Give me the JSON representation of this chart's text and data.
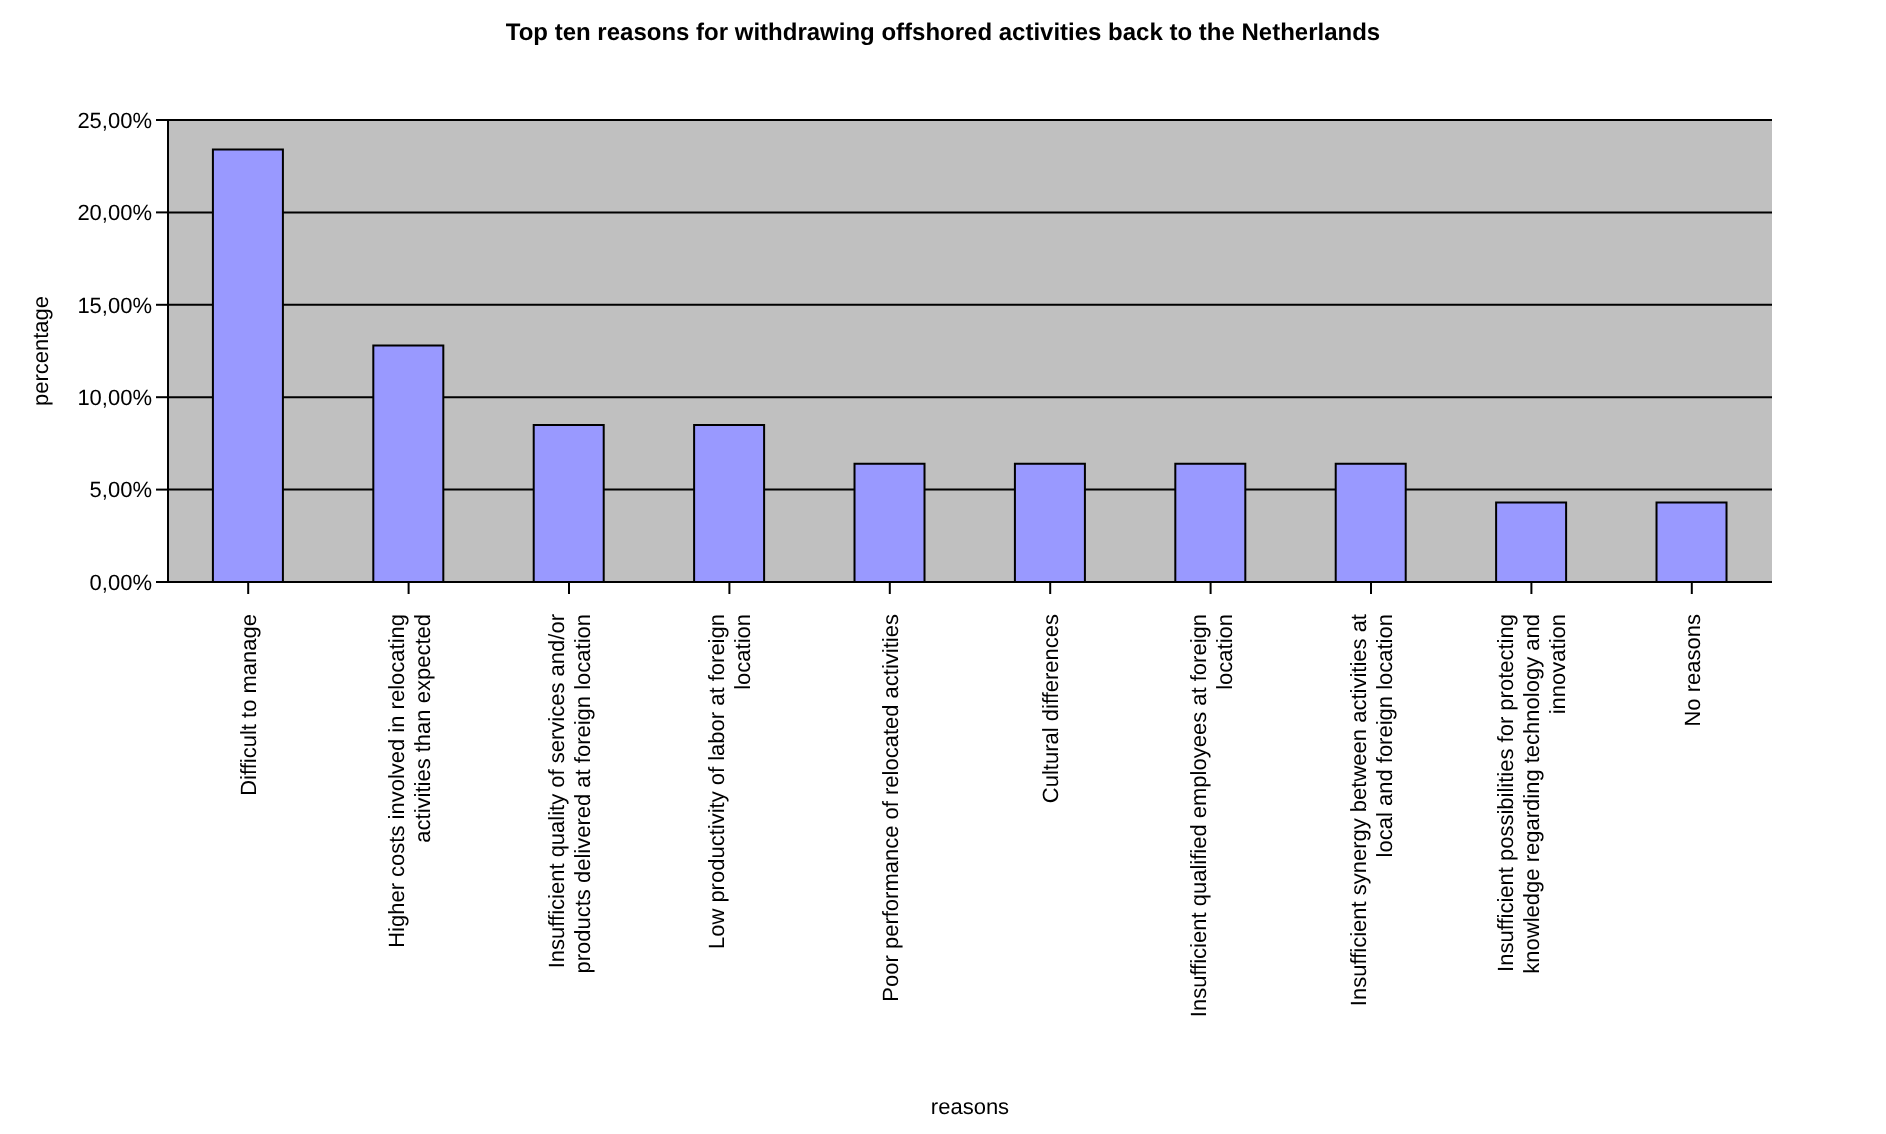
{
  "chart_data": {
    "type": "bar",
    "title": "Top ten reasons for withdrawing offshored activities back to the Netherlands",
    "xlabel": "reasons",
    "ylabel": "percentage",
    "categories": [
      "Difficult to manage",
      "Higher costs involved in relocating activities than expected",
      "Insufficient quality of services and/or products delivered at foreign location",
      "Low productivity of labor at foreign location",
      "Poor performance of relocated activities",
      "Cultural differences",
      "Insufficient qualified employees at foreign location",
      "Insufficient synergy between activities at local and foreign location",
      "Insufficient possibilities for protecting knowledge regarding technology and innovation",
      "No reasons"
    ],
    "values": [
      23.4,
      12.8,
      8.5,
      8.5,
      6.4,
      6.4,
      6.4,
      6.4,
      4.3,
      4.3
    ],
    "color": "#9999ff",
    "ylim": [
      0,
      25
    ],
    "yticks": [
      {
        "value": 0,
        "label": "0,00%"
      },
      {
        "value": 5,
        "label": "5,00%"
      },
      {
        "value": 10,
        "label": "10,00%"
      },
      {
        "value": 15,
        "label": "15,00%"
      },
      {
        "value": 20,
        "label": "20,00%"
      },
      {
        "value": 25,
        "label": "25,00%"
      }
    ],
    "grid": "y",
    "legend": false
  }
}
